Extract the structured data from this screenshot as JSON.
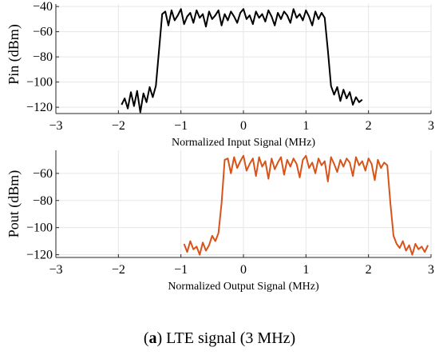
{
  "chart_data": [
    {
      "type": "line",
      "ylabel": "Pin (dBm)",
      "xlabel": "Normalized Input Signal (MHz)",
      "xlim": [
        -3,
        3
      ],
      "ylim": [
        -125,
        -38
      ],
      "xticks": [
        -3,
        -2,
        -1,
        0,
        1,
        2,
        3
      ],
      "yticks": [
        -40,
        -60,
        -80,
        -100,
        -120
      ],
      "grid": true,
      "series": [
        {
          "color": "#000000",
          "x": [
            -1.95,
            -1.9,
            -1.85,
            -1.8,
            -1.75,
            -1.7,
            -1.65,
            -1.6,
            -1.55,
            -1.5,
            -1.45,
            -1.4,
            -1.35,
            -1.3,
            -1.25,
            -1.2,
            -1.15,
            -1.1,
            -1.05,
            -1.0,
            -0.95,
            -0.9,
            -0.85,
            -0.8,
            -0.75,
            -0.7,
            -0.65,
            -0.6,
            -0.55,
            -0.5,
            -0.45,
            -0.4,
            -0.35,
            -0.3,
            -0.25,
            -0.2,
            -0.15,
            -0.1,
            -0.05,
            0.0,
            0.05,
            0.1,
            0.15,
            0.2,
            0.25,
            0.3,
            0.35,
            0.4,
            0.45,
            0.5,
            0.55,
            0.6,
            0.65,
            0.7,
            0.75,
            0.8,
            0.85,
            0.9,
            0.95,
            1.0,
            1.05,
            1.1,
            1.15,
            1.2,
            1.25,
            1.3,
            1.35,
            1.4,
            1.45,
            1.5,
            1.55,
            1.6,
            1.65,
            1.7,
            1.75,
            1.8,
            1.85,
            1.9
          ],
          "y": [
            -118,
            -113,
            -121,
            -108,
            -119,
            -107,
            -124,
            -109,
            -116,
            -104,
            -112,
            -103,
            -75,
            -46,
            -44,
            -55,
            -43,
            -51,
            -47,
            -42,
            -54,
            -48,
            -45,
            -53,
            -43,
            -49,
            -46,
            -56,
            -44,
            -50,
            -47,
            -43,
            -55,
            -46,
            -51,
            -44,
            -48,
            -53,
            -45,
            -42,
            -50,
            -47,
            -54,
            -44,
            -49,
            -46,
            -52,
            -43,
            -48,
            -55,
            -45,
            -50,
            -44,
            -47,
            -53,
            -42,
            -49,
            -46,
            -51,
            -43,
            -48,
            -55,
            -44,
            -50,
            -45,
            -49,
            -75,
            -103,
            -110,
            -104,
            -115,
            -106,
            -113,
            -108,
            -118,
            -112,
            -116,
            -114
          ]
        }
      ]
    },
    {
      "type": "line",
      "ylabel": "Pout (dBm)",
      "xlabel": "Normalized Output Signal (MHz)",
      "xlim": [
        -3,
        3
      ],
      "ylim": [
        -122,
        -43
      ],
      "xticks": [
        -3,
        -2,
        -1,
        0,
        1,
        2,
        3
      ],
      "yticks": [
        -60,
        -80,
        -100,
        -120
      ],
      "grid": true,
      "series": [
        {
          "color": "#d95319",
          "x": [
            -0.95,
            -0.9,
            -0.85,
            -0.8,
            -0.75,
            -0.7,
            -0.65,
            -0.6,
            -0.55,
            -0.5,
            -0.45,
            -0.4,
            -0.35,
            -0.3,
            -0.25,
            -0.2,
            -0.15,
            -0.1,
            -0.05,
            0.0,
            0.05,
            0.1,
            0.15,
            0.2,
            0.25,
            0.3,
            0.35,
            0.4,
            0.45,
            0.5,
            0.55,
            0.6,
            0.65,
            0.7,
            0.75,
            0.8,
            0.85,
            0.9,
            0.95,
            1.0,
            1.05,
            1.1,
            1.15,
            1.2,
            1.25,
            1.3,
            1.35,
            1.4,
            1.45,
            1.5,
            1.55,
            1.6,
            1.65,
            1.7,
            1.75,
            1.8,
            1.85,
            1.9,
            1.95,
            2.0,
            2.05,
            2.1,
            2.15,
            2.2,
            2.25,
            2.3,
            2.35,
            2.4,
            2.45,
            2.5,
            2.55,
            2.6,
            2.65,
            2.7,
            2.75,
            2.8,
            2.85,
            2.9,
            2.95
          ],
          "y": [
            -112,
            -118,
            -110,
            -116,
            -114,
            -120,
            -111,
            -117,
            -113,
            -106,
            -110,
            -104,
            -82,
            -50,
            -49,
            -60,
            -48,
            -56,
            -51,
            -47,
            -58,
            -53,
            -49,
            -62,
            -48,
            -55,
            -51,
            -64,
            -49,
            -57,
            -52,
            -48,
            -61,
            -50,
            -55,
            -49,
            -53,
            -63,
            -50,
            -47,
            -56,
            -52,
            -60,
            -49,
            -54,
            -51,
            -66,
            -48,
            -53,
            -59,
            -50,
            -55,
            -49,
            -52,
            -62,
            -48,
            -54,
            -51,
            -58,
            -49,
            -53,
            -65,
            -50,
            -56,
            -52,
            -54,
            -82,
            -106,
            -112,
            -115,
            -110,
            -117,
            -113,
            -120,
            -112,
            -116,
            -114,
            -118,
            -113
          ]
        }
      ]
    }
  ],
  "caption": {
    "label": "a",
    "text": "LTE signal (3 MHz)"
  }
}
